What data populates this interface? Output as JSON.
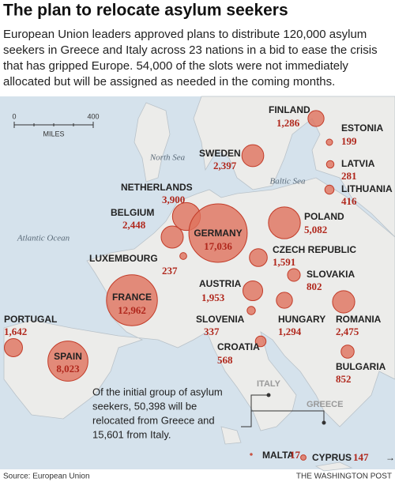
{
  "title": "The plan to relocate asylum seekers",
  "subtitle": [
    "European Union leaders approved plans to distribute 120,000 asylum",
    "seekers in Greece and Italy across 23 nations in a bid to ease the crisis",
    "that has gripped Europe. 54,000 of the slots were not immediately",
    "allocated but will be assigned as needed in the coming months."
  ],
  "scale": {
    "ticks": [
      "0",
      "400"
    ],
    "unit": "MILES"
  },
  "seas": [
    "North Sea",
    "Baltic Sea",
    "Atlantic Ocean"
  ],
  "countries": [
    {
      "name": "FINLAND",
      "value": 1286,
      "value_label": "1,286"
    },
    {
      "name": "ESTONIA",
      "value": 199,
      "value_label": "199"
    },
    {
      "name": "SWEDEN",
      "value": 2397,
      "value_label": "2,397"
    },
    {
      "name": "LATVIA",
      "value": 281,
      "value_label": "281"
    },
    {
      "name": "LITHUANIA",
      "value": 416,
      "value_label": "416"
    },
    {
      "name": "NETHERLANDS",
      "value": 3900,
      "value_label": "3,900"
    },
    {
      "name": "BELGIUM",
      "value": 2448,
      "value_label": "2,448"
    },
    {
      "name": "GERMANY",
      "value": 17036,
      "value_label": "17,036"
    },
    {
      "name": "POLAND",
      "value": 5082,
      "value_label": "5,082"
    },
    {
      "name": "LUXEMBOURG",
      "value": 237,
      "value_label": "237"
    },
    {
      "name": "CZECH REPUBLIC",
      "value": 1591,
      "value_label": "1,591"
    },
    {
      "name": "SLOVAKIA",
      "value": 802,
      "value_label": "802"
    },
    {
      "name": "AUSTRIA",
      "value": 1953,
      "value_label": "1,953"
    },
    {
      "name": "FRANCE",
      "value": 12962,
      "value_label": "12,962"
    },
    {
      "name": "PORTUGAL",
      "value": 1642,
      "value_label": "1,642"
    },
    {
      "name": "SLOVENIA",
      "value": 337,
      "value_label": "337"
    },
    {
      "name": "HUNGARY",
      "value": 1294,
      "value_label": "1,294"
    },
    {
      "name": "ROMANIA",
      "value": 2475,
      "value_label": "2,475"
    },
    {
      "name": "CROATIA",
      "value": 568,
      "value_label": "568"
    },
    {
      "name": "SPAIN",
      "value": 8023,
      "value_label": "8,023"
    },
    {
      "name": "BULGARIA",
      "value": 852,
      "value_label": "852"
    },
    {
      "name": "MALTA",
      "value": 17,
      "value_label": "17"
    },
    {
      "name": "CYPRUS",
      "value": 147,
      "value_label": "147"
    }
  ],
  "other_labels": [
    "ITALY",
    "GREECE"
  ],
  "annotation": [
    "Of the initial group of asylum",
    "seekers, 50,398 will be",
    "relocated from Greece and",
    "15,601 from Italy."
  ],
  "source": "Source: European Union",
  "credit": "THE WASHINGTON POST",
  "arrow": "→"
}
